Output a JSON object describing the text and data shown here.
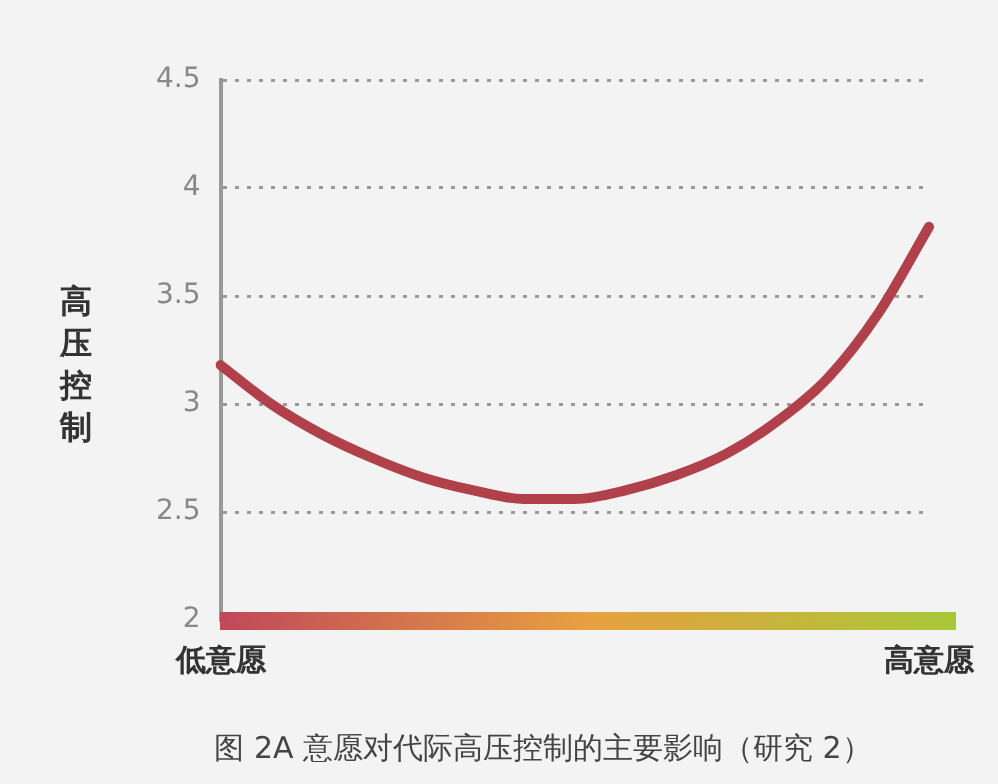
{
  "chart_data": {
    "type": "line",
    "title": "图 2A 意愿对代际高压控制的主要影响（研究 2）",
    "ylabel": "高压控制",
    "categories": [
      "低意愿",
      null,
      null,
      null,
      null,
      null,
      null,
      null,
      null,
      null,
      null,
      null,
      null,
      null,
      "高意愿"
    ],
    "series": [
      {
        "color": "#b0404a",
        "values": [
          3.18,
          3.0,
          2.86,
          2.75,
          2.66,
          2.6,
          2.56,
          2.56,
          2.6,
          2.67,
          2.77,
          2.92,
          3.12,
          3.42,
          3.82
        ]
      }
    ],
    "ylim": [
      2,
      4.5
    ],
    "yticks": [
      2,
      2.5,
      3,
      3.5,
      4,
      4.5
    ],
    "grid": "y",
    "marker": "none",
    "line_style": "solid"
  }
}
